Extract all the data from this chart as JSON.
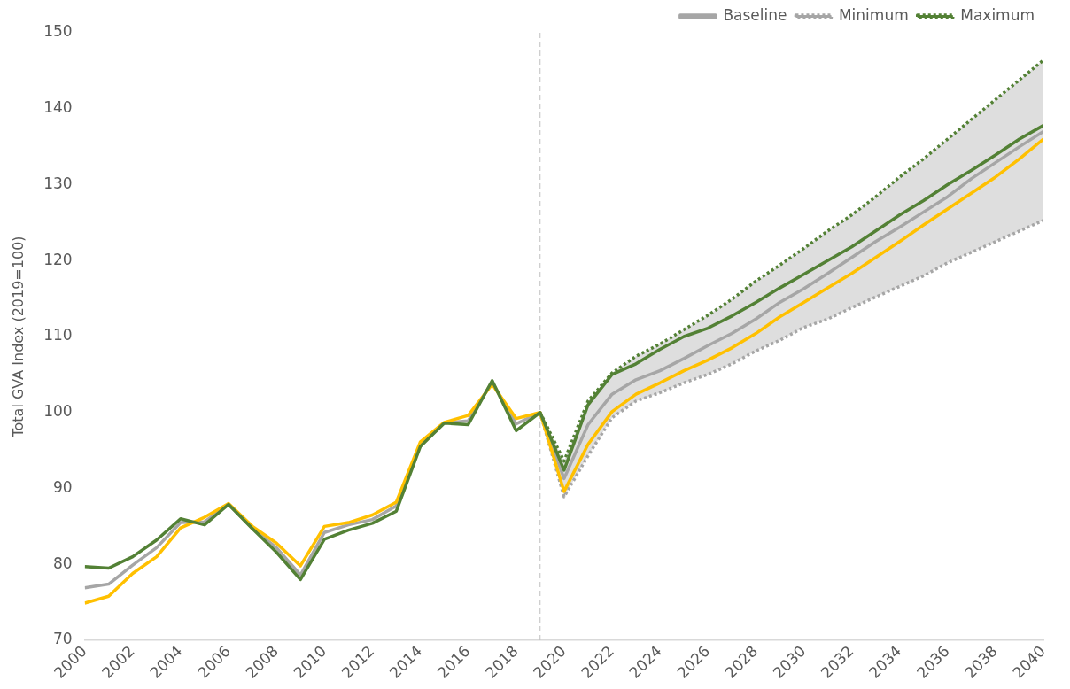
{
  "chart_data": {
    "type": "line",
    "ylabel": "Total GVA Index (2019=100)",
    "x": [
      2000,
      2001,
      2002,
      2003,
      2004,
      2005,
      2006,
      2007,
      2008,
      2009,
      2010,
      2011,
      2012,
      2013,
      2014,
      2015,
      2016,
      2017,
      2018,
      2019,
      2020,
      2021,
      2022,
      2023,
      2024,
      2025,
      2026,
      2027,
      2028,
      2029,
      2030,
      2031,
      2032,
      2033,
      2034,
      2035,
      2036,
      2037,
      2038,
      2039,
      2040
    ],
    "xlim": [
      2000,
      2040
    ],
    "xticks": [
      2000,
      2002,
      2004,
      2006,
      2008,
      2010,
      2012,
      2014,
      2016,
      2018,
      2020,
      2022,
      2024,
      2026,
      2028,
      2030,
      2032,
      2034,
      2036,
      2038,
      2040
    ],
    "ylim": [
      70,
      150
    ],
    "yticks": [
      70,
      80,
      90,
      100,
      110,
      120,
      130,
      140,
      150
    ],
    "grid": false,
    "legend": "top right",
    "marker": "none",
    "ref_lines": [
      {
        "axis": "x",
        "value": 2019,
        "color": "#bfbfbf",
        "line_style": "dashed"
      }
    ],
    "series": [
      {
        "color": "#538135",
        "values": [
          79.7,
          79.5,
          81.0,
          83.2,
          86.0,
          85.2,
          87.9,
          84.7,
          81.6,
          78.0,
          83.3,
          84.5,
          85.4,
          87.0,
          95.5,
          98.6,
          98.4,
          104.2,
          97.6,
          100,
          92.4,
          101.0,
          105.0,
          106.4,
          108.3,
          110.0,
          111.1,
          112.7,
          114.5,
          116.4,
          118.2,
          120.0,
          121.8,
          123.9,
          126.0,
          127.9,
          130.0,
          131.9,
          133.9,
          136.0,
          137.8
        ]
      },
      {
        "color": "#ffc000",
        "values": [
          74.9,
          75.8,
          78.8,
          81.0,
          84.8,
          86.2,
          88.0,
          85.0,
          82.8,
          79.8,
          85.0,
          85.5,
          86.5,
          88.2,
          96.1,
          98.7,
          99.6,
          103.7,
          99.2,
          100,
          89.6,
          95.8,
          100.1,
          102.4,
          103.9,
          105.5,
          106.9,
          108.5,
          110.4,
          112.6,
          114.5,
          116.4,
          118.3,
          120.4,
          122.5,
          124.7,
          126.8,
          128.9,
          131.0,
          133.4,
          136.0
        ]
      },
      {
        "name": "Baseline",
        "color": "#a6a6a6",
        "values": [
          76.9,
          77.4,
          79.9,
          82.2,
          85.5,
          85.6,
          87.9,
          84.7,
          82.2,
          78.6,
          84.2,
          85.2,
          85.9,
          87.7,
          95.7,
          98.6,
          98.9,
          104.0,
          98.5,
          100,
          91.3,
          98.4,
          102.4,
          104.3,
          105.5,
          107.1,
          108.8,
          110.4,
          112.3,
          114.5,
          116.3,
          118.3,
          120.4,
          122.5,
          124.4,
          126.4,
          128.4,
          130.8,
          132.9,
          135.0,
          137.0
        ],
        "lower": [
          null,
          null,
          null,
          null,
          null,
          null,
          null,
          null,
          null,
          null,
          null,
          null,
          null,
          null,
          null,
          null,
          null,
          null,
          null,
          100,
          88.9,
          94.3,
          99.3,
          101.5,
          102.6,
          103.9,
          105.0,
          106.4,
          108.1,
          109.5,
          111.2,
          112.3,
          113.8,
          115.2,
          116.6,
          118.0,
          119.7,
          121.1,
          122.5,
          123.9,
          125.3
        ],
        "upper": [
          null,
          null,
          null,
          null,
          null,
          null,
          null,
          null,
          null,
          null,
          null,
          null,
          null,
          null,
          null,
          null,
          null,
          null,
          null,
          100,
          93.6,
          101.5,
          105.2,
          107.4,
          109.0,
          110.9,
          112.8,
          114.9,
          117.3,
          119.4,
          121.6,
          123.9,
          126.0,
          128.4,
          131.0,
          133.4,
          136.0,
          138.6,
          141.2,
          143.8,
          146.4
        ]
      },
      {
        "name": "Minimum",
        "color": "#a6a6a6",
        "line_style": "dotted",
        "values": [
          null,
          null,
          null,
          null,
          null,
          null,
          null,
          null,
          null,
          null,
          null,
          null,
          null,
          null,
          null,
          null,
          null,
          null,
          null,
          100,
          88.9,
          94.3,
          99.3,
          101.5,
          102.6,
          103.9,
          105.0,
          106.4,
          108.1,
          109.5,
          111.2,
          112.3,
          113.8,
          115.2,
          116.6,
          118.0,
          119.7,
          121.1,
          122.5,
          123.9,
          125.3
        ]
      },
      {
        "name": "Maximum",
        "color": "#538135",
        "line_style": "dotted",
        "values": [
          null,
          null,
          null,
          null,
          null,
          null,
          null,
          null,
          null,
          null,
          null,
          null,
          null,
          null,
          null,
          null,
          null,
          null,
          null,
          100,
          93.6,
          101.5,
          105.2,
          107.4,
          109.0,
          110.9,
          112.8,
          114.9,
          117.3,
          119.4,
          121.6,
          123.9,
          126.0,
          128.4,
          131.0,
          133.4,
          136.0,
          138.6,
          141.2,
          143.8,
          146.4
        ]
      }
    ]
  }
}
